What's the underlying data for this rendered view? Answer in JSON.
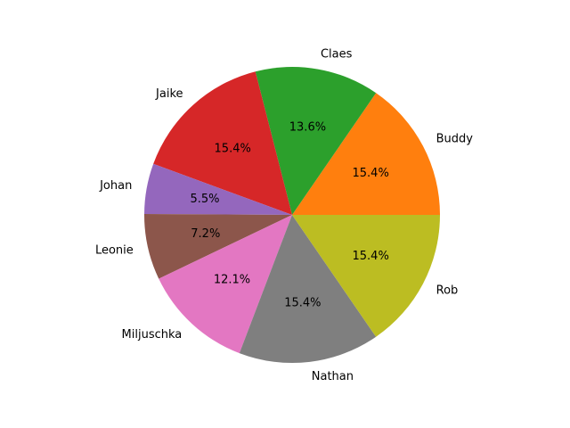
{
  "chart_data": {
    "type": "pie",
    "start_angle_deg": 0,
    "direction": "counterclockwise",
    "slices": [
      {
        "label": "Buddy",
        "value": 15.4,
        "pct_label": "15.4%",
        "color": "#ff7f0e"
      },
      {
        "label": "Claes",
        "value": 13.6,
        "pct_label": "13.6%",
        "color": "#2ca02c"
      },
      {
        "label": "Jaike",
        "value": 15.4,
        "pct_label": "15.4%",
        "color": "#d62728"
      },
      {
        "label": "Johan",
        "value": 5.5,
        "pct_label": "5.5%",
        "color": "#9467bd"
      },
      {
        "label": "Leonie",
        "value": 7.2,
        "pct_label": "7.2%",
        "color": "#8c564b"
      },
      {
        "label": "Miljuschka",
        "value": 12.1,
        "pct_label": "12.1%",
        "color": "#e377c2"
      },
      {
        "label": "Nathan",
        "value": 15.4,
        "pct_label": "15.4%",
        "color": "#7f7f7f"
      },
      {
        "label": "Rob",
        "value": 15.4,
        "pct_label": "15.4%",
        "color": "#bcbd22"
      }
    ]
  }
}
